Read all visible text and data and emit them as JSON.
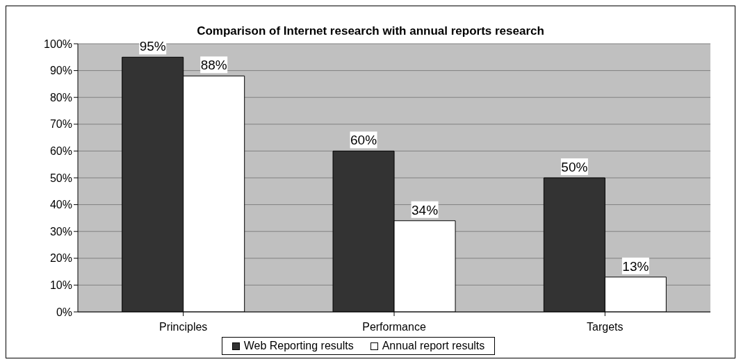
{
  "chart_data": {
    "type": "bar",
    "title": "Comparison of Internet research with annual reports research",
    "categories": [
      "Principles",
      "Performance",
      "Targets"
    ],
    "series": [
      {
        "name": "Web Reporting results",
        "color": "#333333",
        "values": [
          95,
          60,
          50
        ],
        "value_labels": [
          "95%",
          "60%",
          "50%"
        ]
      },
      {
        "name": "Annual report results",
        "color": "#ffffff",
        "values": [
          88,
          34,
          13
        ],
        "value_labels": [
          "88%",
          "34%",
          "13%"
        ]
      }
    ],
    "ylim": [
      0,
      100
    ],
    "yticks": [
      {
        "value": 0,
        "label": "0%"
      },
      {
        "value": 10,
        "label": "10%"
      },
      {
        "value": 20,
        "label": "20%"
      },
      {
        "value": 30,
        "label": "30%"
      },
      {
        "value": 40,
        "label": "40%"
      },
      {
        "value": 50,
        "label": "50%"
      },
      {
        "value": 60,
        "label": "60%"
      },
      {
        "value": 70,
        "label": "70%"
      },
      {
        "value": 80,
        "label": "80%"
      },
      {
        "value": 90,
        "label": "90%"
      },
      {
        "value": 100,
        "label": "100%"
      }
    ],
    "grid": "y",
    "legend": "bottom"
  }
}
